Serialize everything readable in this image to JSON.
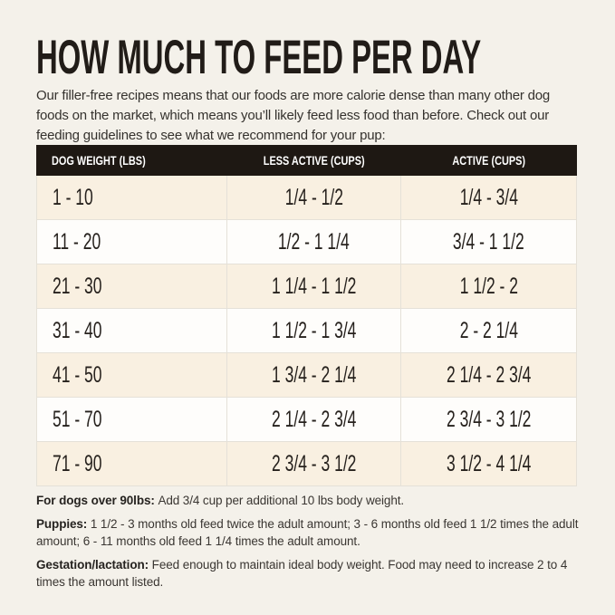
{
  "page": {
    "title": "HOW MUCH TO FEED PER DAY",
    "intro": "Our filler-free recipes means that our foods are more calorie dense than many other dog foods on the market, which means you’ll likely feed less food than before. Check out our feeding guidelines to see what we recommend for your pup:"
  },
  "table": {
    "columns": [
      "DOG WEIGHT (LBS)",
      "LESS ACTIVE (CUPS)",
      "ACTIVE (CUPS)"
    ],
    "rows": [
      {
        "weight": "1 - 10",
        "less_active": "1/4 - 1/2",
        "active": "1/4 - 3/4"
      },
      {
        "weight": "11 - 20",
        "less_active": "1/2 - 1 1/4",
        "active": "3/4 - 1 1/2"
      },
      {
        "weight": "21 - 30",
        "less_active": "1 1/4 - 1 1/2",
        "active": "1 1/2 - 2"
      },
      {
        "weight": "31 - 40",
        "less_active": "1 1/2 - 1 3/4",
        "active": "2 - 2 1/4"
      },
      {
        "weight": "41 - 50",
        "less_active": "1 3/4 - 2 1/4",
        "active": "2 1/4 - 2 3/4"
      },
      {
        "weight": "51 - 70",
        "less_active": "2 1/4 - 2 3/4",
        "active": "2 3/4 - 3 1/2"
      },
      {
        "weight": "71 - 90",
        "less_active": "2 3/4 - 3 1/2",
        "active": "3 1/2 - 4 1/4"
      }
    ]
  },
  "notes": [
    {
      "label": "For dogs over 90lbs:",
      "text": "Add 3/4 cup per additional 10 lbs body weight."
    },
    {
      "label": "Puppies:",
      "text": "1 1/2 - 3 months old feed twice the adult amount; 3 - 6 months old feed 1 1/2 times the adult amount; 6 - 11 months old feed 1 1/4 times the adult amount."
    },
    {
      "label": "Gestation/lactation:",
      "text": "Feed enough to maintain ideal body weight. Food may need to increase 2 to 4 times the amount listed."
    }
  ],
  "colors": {
    "page_background": "#f4f1ea",
    "table_header_background": "#1e1813",
    "table_header_text": "#ffffff",
    "row_alternate_cream": "#f9f0e1",
    "row_alternate_white": "#fefdfb",
    "divider": "#e5e1d8",
    "text_primary": "#221d19"
  }
}
